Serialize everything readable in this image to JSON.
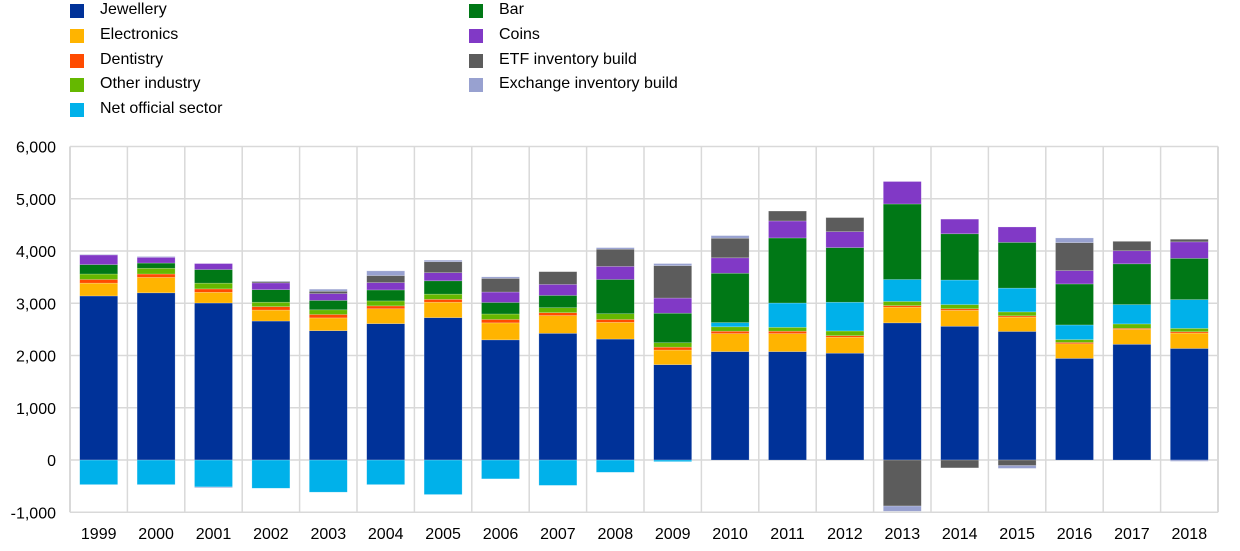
{
  "chart_data": {
    "type": "bar",
    "stacked": true,
    "title": "",
    "xlabel": "",
    "ylabel": "",
    "ylim": [
      -1000,
      6000
    ],
    "yticks": [
      -1000,
      0,
      1000,
      2000,
      3000,
      4000,
      5000,
      6000
    ],
    "ytick_labels": [
      "-1,000",
      "0",
      "1,000",
      "2,000",
      "3,000",
      "4,000",
      "5,000",
      "6,000"
    ],
    "grid": true,
    "legend_position": "top-left",
    "categories": [
      "1999",
      "2000",
      "2001",
      "2002",
      "2003",
      "2004",
      "2005",
      "2006",
      "2007",
      "2008",
      "2009",
      "2010",
      "2011",
      "2012",
      "2013",
      "2014",
      "2015",
      "2016",
      "2017",
      "2018"
    ],
    "series": [
      {
        "name": "Jewellery",
        "color": "#003299",
        "values": [
          3140,
          3200,
          3005,
          2660,
          2475,
          2610,
          2725,
          2300,
          2425,
          2315,
          1825,
          2075,
          2075,
          2045,
          2625,
          2560,
          2460,
          1945,
          2215,
          2135
        ]
      },
      {
        "name": "Electronics",
        "color": "#FFB400",
        "values": [
          245,
          295,
          205,
          210,
          245,
          285,
          295,
          325,
          340,
          320,
          280,
          345,
          345,
          305,
          300,
          305,
          275,
          280,
          285,
          295
        ]
      },
      {
        "name": "Dentistry",
        "color": "#FF4B00",
        "values": [
          70,
          65,
          65,
          65,
          65,
          55,
          55,
          65,
          55,
          55,
          55,
          45,
          45,
          30,
          30,
          30,
          25,
          25,
          20,
          25
        ]
      },
      {
        "name": "Other industry",
        "color": "#65B800",
        "values": [
          105,
          110,
          110,
          85,
          90,
          95,
          100,
          105,
          95,
          110,
          85,
          85,
          75,
          90,
          80,
          80,
          75,
          55,
          85,
          65
        ]
      },
      {
        "name": "Net official sector",
        "color": "#00B1EA",
        "values": [
          -470,
          -470,
          -515,
          -540,
          -615,
          -470,
          -660,
          -360,
          -485,
          -235,
          -30,
          80,
          465,
          550,
          420,
          470,
          455,
          280,
          370,
          550
        ]
      },
      {
        "name": "Bar",
        "color": "#007816",
        "values": [
          180,
          100,
          260,
          240,
          180,
          210,
          255,
          220,
          235,
          655,
          565,
          945,
          1245,
          1045,
          1445,
          885,
          875,
          785,
          780,
          790
        ]
      },
      {
        "name": "Coins",
        "color": "#8139C6",
        "values": [
          185,
          110,
          115,
          130,
          130,
          140,
          155,
          200,
          210,
          250,
          290,
          295,
          325,
          305,
          430,
          280,
          295,
          255,
          250,
          315
        ]
      },
      {
        "name": "ETF inventory build",
        "color": "#5C5C5C",
        "values": [
          0,
          0,
          0,
          25,
          45,
          135,
          210,
          260,
          245,
          330,
          620,
          375,
          190,
          270,
          -880,
          -150,
          -105,
          535,
          180,
          50
        ]
      },
      {
        "name": "Exchange inventory build",
        "color": "#98A1D0",
        "values": [
          10,
          15,
          -15,
          10,
          40,
          90,
          30,
          30,
          0,
          30,
          40,
          50,
          0,
          0,
          -100,
          0,
          -55,
          90,
          0,
          -25
        ]
      }
    ]
  }
}
